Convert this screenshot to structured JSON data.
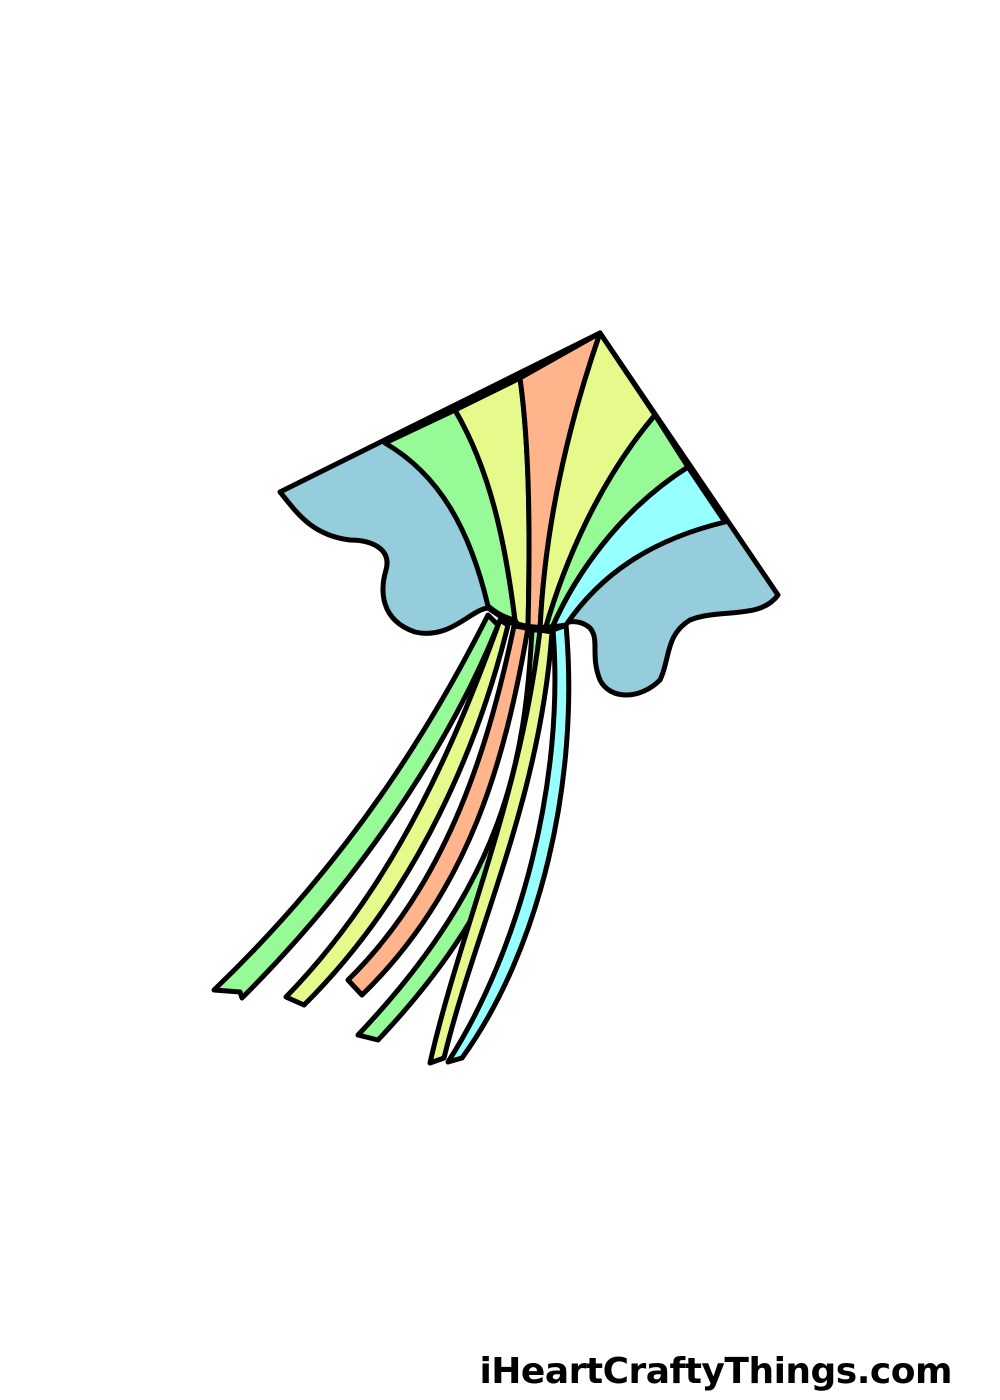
{
  "image": {
    "subject": "kite-drawing",
    "colors": {
      "outline": "#000000",
      "background": "#ffffff",
      "wing_blue": "#96cddc",
      "green": "#96fa96",
      "yellow": "#e6fa8c",
      "peach": "#ffb48c",
      "cyan": "#96ffff"
    }
  },
  "watermark": {
    "text": "iHeartCraftyThings.com"
  }
}
